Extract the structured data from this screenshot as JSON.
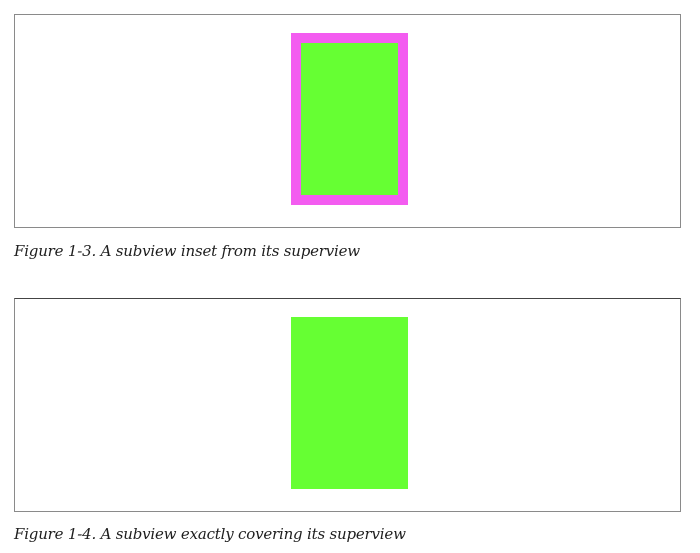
{
  "figures": [
    {
      "caption": "Figure 1-3. A subview inset from its superview",
      "superview_color": "#f35cf0",
      "subview_color": "#66ff33"
    },
    {
      "caption": "Figure 1-4. A subview exactly covering its superview",
      "superview_color": "#66ff33",
      "subview_color": "#66ff33"
    }
  ]
}
